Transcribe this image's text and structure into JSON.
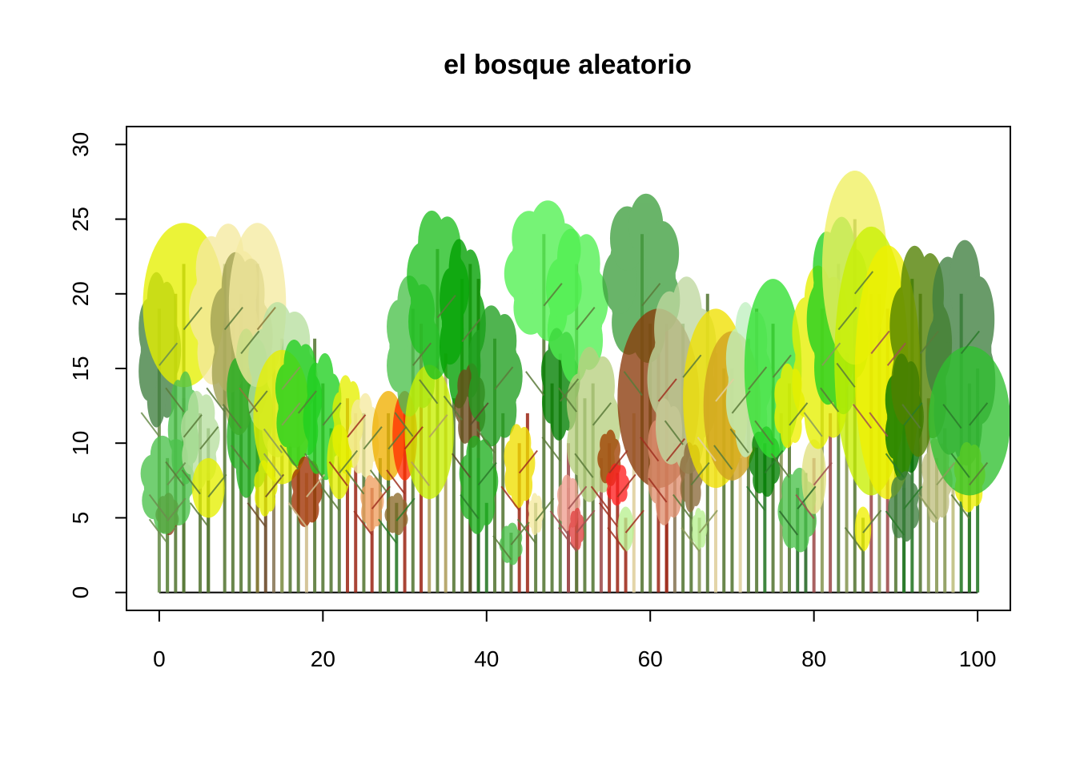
{
  "chart_data": {
    "type": "scatter",
    "title": "el bosque aleatorio",
    "xlabel": "",
    "ylabel": "",
    "xlim": [
      -4,
      104
    ],
    "ylim": [
      -1.2,
      31.2
    ],
    "x_ticks": [
      0,
      20,
      40,
      60,
      80,
      100
    ],
    "y_ticks": [
      0,
      5,
      10,
      15,
      20,
      25,
      30
    ],
    "grid": false,
    "legend": "none",
    "ground_line": [
      0,
      100
    ],
    "crown_shapes": [
      "cloud",
      "ellipse"
    ],
    "trees": [
      {
        "x": 0,
        "height": 19,
        "crown_width": 5.5,
        "crown_height": 11,
        "crown_shape": "cloud",
        "trunk_color": "#6b8e4e",
        "crown_color": "#3f7f3f"
      },
      {
        "x": 1,
        "height": 6,
        "crown_width": 3,
        "crown_height": 3,
        "crown_shape": "cloud",
        "trunk_color": "#6b8e4e",
        "crown_color": "#8b3a1a"
      },
      {
        "x": 1,
        "height": 9,
        "crown_width": 7,
        "crown_height": 7,
        "crown_shape": "cloud",
        "trunk_color": "#6b8e4e",
        "crown_color": "#4bc24b"
      },
      {
        "x": 3,
        "height": 22,
        "crown_width": 10,
        "crown_height": 11,
        "crown_shape": "ellipse",
        "trunk_color": "#5a7a3a",
        "crown_color": "#e6f000"
      },
      {
        "x": 3,
        "height": 13,
        "crown_width": 4,
        "crown_height": 8,
        "crown_shape": "cloud",
        "trunk_color": "#5a7a3a",
        "crown_color": "#4bc24b"
      },
      {
        "x": 5,
        "height": 12,
        "crown_width": 5,
        "crown_height": 7,
        "crown_shape": "cloud",
        "trunk_color": "#5a7a3a",
        "crown_color": "#b8e0a0"
      },
      {
        "x": 6,
        "height": 8,
        "crown_width": 4,
        "crown_height": 4,
        "crown_shape": "ellipse",
        "trunk_color": "#5a7a3a",
        "crown_color": "#e6f000"
      },
      {
        "x": 8,
        "height": 22,
        "crown_width": 9,
        "crown_height": 12,
        "crown_shape": "cloud",
        "trunk_color": "#5a7a3a",
        "crown_color": "#f5eaa0"
      },
      {
        "x": 10,
        "height": 20,
        "crown_width": 8,
        "crown_height": 13,
        "crown_shape": "cloud",
        "trunk_color": "#5a7a3a",
        "crown_color": "#a0a050"
      },
      {
        "x": 11,
        "height": 15,
        "crown_width": 6,
        "crown_height": 12,
        "crown_shape": "cloud",
        "trunk_color": "#5a7a3a",
        "crown_color": "#20b020"
      },
      {
        "x": 12,
        "height": 22,
        "crown_width": 7,
        "crown_height": 11,
        "crown_shape": "ellipse",
        "trunk_color": "#8b7a3a",
        "crown_color": "#f5eaa0"
      },
      {
        "x": 13,
        "height": 8,
        "crown_width": 3,
        "crown_height": 4,
        "crown_shape": "cloud",
        "trunk_color": "#6b4a2a",
        "crown_color": "#e6f000"
      },
      {
        "x": 15,
        "height": 17,
        "crown_width": 9,
        "crown_height": 11,
        "crown_shape": "cloud",
        "trunk_color": "#8b9a5a",
        "crown_color": "#b8e0a0"
      },
      {
        "x": 15,
        "height": 14,
        "crown_width": 7,
        "crown_height": 9,
        "crown_shape": "ellipse",
        "trunk_color": "#8b9a5a",
        "crown_color": "#e6f000"
      },
      {
        "x": 17,
        "height": 15,
        "crown_width": 6,
        "crown_height": 9,
        "crown_shape": "cloud",
        "trunk_color": "#5a7a3a",
        "crown_color": "#20d020"
      },
      {
        "x": 18,
        "height": 8,
        "crown_width": 4,
        "crown_height": 5,
        "crown_shape": "cloud",
        "trunk_color": "#d0c090",
        "crown_color": "#a03000"
      },
      {
        "x": 20,
        "height": 14,
        "crown_width": 5,
        "crown_height": 9,
        "crown_shape": "cloud",
        "trunk_color": "#5a7a3a",
        "crown_color": "#20d020"
      },
      {
        "x": 22,
        "height": 10,
        "crown_width": 3,
        "crown_height": 5,
        "crown_shape": "ellipse",
        "trunk_color": "#5a7a3a",
        "crown_color": "#e6f000"
      },
      {
        "x": 23,
        "height": 13,
        "crown_width": 4,
        "crown_height": 7,
        "crown_shape": "cloud",
        "trunk_color": "#a03020",
        "crown_color": "#e6f000"
      },
      {
        "x": 25,
        "height": 12,
        "crown_width": 4,
        "crown_height": 6,
        "crown_shape": "cloud",
        "trunk_color": "#5a7a3a",
        "crown_color": "#f5eaa0"
      },
      {
        "x": 26,
        "height": 7,
        "crown_width": 3,
        "crown_height": 4,
        "crown_shape": "cloud",
        "trunk_color": "#a03020",
        "crown_color": "#f0a060"
      },
      {
        "x": 28,
        "height": 12,
        "crown_width": 4,
        "crown_height": 6,
        "crown_shape": "ellipse",
        "trunk_color": "#5a7a3a",
        "crown_color": "#f0b000"
      },
      {
        "x": 29,
        "height": 6,
        "crown_width": 3,
        "crown_height": 3,
        "crown_shape": "cloud",
        "trunk_color": "#2a7a2a",
        "crown_color": "#8b6a2a"
      },
      {
        "x": 30,
        "height": 12,
        "crown_width": 3,
        "crown_height": 6,
        "crown_shape": "ellipse",
        "trunk_color": "#a03020",
        "crown_color": "#ff3000"
      },
      {
        "x": 31,
        "height": 19,
        "crown_width": 7,
        "crown_height": 10,
        "crown_shape": "cloud",
        "trunk_color": "#5a7a3a",
        "crown_color": "#4bc24b"
      },
      {
        "x": 33,
        "height": 13,
        "crown_width": 6,
        "crown_height": 9,
        "crown_shape": "ellipse",
        "trunk_color": "#b0a060",
        "crown_color": "#c8f000"
      },
      {
        "x": 34,
        "height": 23,
        "crown_width": 8,
        "crown_height": 12,
        "crown_shape": "cloud",
        "trunk_color": "#5a7a3a",
        "crown_color": "#20c020"
      },
      {
        "x": 37,
        "height": 21,
        "crown_width": 6,
        "crown_height": 12,
        "crown_shape": "cloud",
        "trunk_color": "#5a7a3a",
        "crown_color": "#00a000"
      },
      {
        "x": 38,
        "height": 14,
        "crown_width": 4,
        "crown_height": 6,
        "crown_shape": "cloud",
        "trunk_color": "#5a4a2a",
        "crown_color": "#6b4a1a"
      },
      {
        "x": 39,
        "height": 9,
        "crown_width": 5,
        "crown_height": 7,
        "crown_shape": "cloud",
        "trunk_color": "#2a7a2a",
        "crown_color": "#20b020"
      },
      {
        "x": 41,
        "height": 17,
        "crown_width": 7,
        "crown_height": 10,
        "crown_shape": "cloud",
        "trunk_color": "#5a7a3a",
        "crown_color": "#20a020"
      },
      {
        "x": 43,
        "height": 4,
        "crown_width": 3,
        "crown_height": 3,
        "crown_shape": "cloud",
        "trunk_color": "#5a7a3a",
        "crown_color": "#4bc24b"
      },
      {
        "x": 44,
        "height": 10,
        "crown_width": 4,
        "crown_height": 6,
        "crown_shape": "cloud",
        "trunk_color": "#a03020",
        "crown_color": "#f0e000"
      },
      {
        "x": 46,
        "height": 6,
        "crown_width": 2,
        "crown_height": 3,
        "crown_shape": "cloud",
        "trunk_color": "#5a7a3a",
        "crown_color": "#f5eaa0"
      },
      {
        "x": 47,
        "height": 24,
        "crown_width": 10,
        "crown_height": 10,
        "crown_shape": "cloud",
        "trunk_color": "#5a7a3a",
        "crown_color": "#50f050"
      },
      {
        "x": 49,
        "height": 16,
        "crown_width": 5,
        "crown_height": 8,
        "crown_shape": "cloud",
        "trunk_color": "#5a7a3a",
        "crown_color": "#008000"
      },
      {
        "x": 50,
        "height": 7,
        "crown_width": 3,
        "crown_height": 4,
        "crown_shape": "cloud",
        "trunk_color": "#a05050",
        "crown_color": "#f0a090"
      },
      {
        "x": 51,
        "height": 5,
        "crown_width": 2,
        "crown_height": 3,
        "crown_shape": "cloud",
        "trunk_color": "#a05050",
        "crown_color": "#e04040"
      },
      {
        "x": 51,
        "height": 22,
        "crown_width": 8,
        "crown_height": 11,
        "crown_shape": "cloud",
        "trunk_color": "#5a7a3a",
        "crown_color": "#50f050"
      },
      {
        "x": 53,
        "height": 14,
        "crown_width": 7,
        "crown_height": 11,
        "crown_shape": "cloud",
        "trunk_color": "#5a7a3a",
        "crown_color": "#b8d080"
      },
      {
        "x": 55,
        "height": 10,
        "crown_width": 3,
        "crown_height": 4,
        "crown_shape": "cloud",
        "trunk_color": "#a03020",
        "crown_color": "#a04000"
      },
      {
        "x": 56,
        "height": 8,
        "crown_width": 3,
        "crown_height": 3,
        "crown_shape": "cloud",
        "trunk_color": "#a03020",
        "crown_color": "#ff2020"
      },
      {
        "x": 57,
        "height": 5,
        "crown_width": 2,
        "crown_height": 3,
        "crown_shape": "ellipse",
        "trunk_color": "#a03020",
        "crown_color": "#b8f090"
      },
      {
        "x": 59,
        "height": 24,
        "crown_width": 10,
        "crown_height": 12,
        "crown_shape": "cloud",
        "trunk_color": "#5a7a3a",
        "crown_color": "#3fa03f"
      },
      {
        "x": 61,
        "height": 16,
        "crown_width": 10,
        "crown_height": 12,
        "crown_shape": "ellipse",
        "trunk_color": "#a03020",
        "crown_color": "#8b3a0a"
      },
      {
        "x": 62,
        "height": 11,
        "crown_width": 5,
        "crown_height": 9,
        "crown_shape": "cloud",
        "trunk_color": "#a03020",
        "crown_color": "#e09070"
      },
      {
        "x": 64,
        "height": 18,
        "crown_width": 9,
        "crown_height": 14,
        "crown_shape": "cloud",
        "trunk_color": "#5a7a3a",
        "crown_color": "#c0d8a0"
      },
      {
        "x": 65,
        "height": 9,
        "crown_width": 3,
        "crown_height": 5,
        "crown_shape": "cloud",
        "trunk_color": "#5a7a3a",
        "crown_color": "#8b6a3a"
      },
      {
        "x": 66,
        "height": 5,
        "crown_width": 2,
        "crown_height": 3,
        "crown_shape": "cloud",
        "trunk_color": "#8b9a5a",
        "crown_color": "#b8f090"
      },
      {
        "x": 68,
        "height": 16,
        "crown_width": 8,
        "crown_height": 12,
        "crown_shape": "ellipse",
        "trunk_color": "#e0d0a0",
        "crown_color": "#f0e000"
      },
      {
        "x": 70,
        "height": 15,
        "crown_width": 7,
        "crown_height": 10,
        "crown_shape": "ellipse",
        "trunk_color": "#5a7a3a",
        "crown_color": "#d0a020"
      },
      {
        "x": 72,
        "height": 17,
        "crown_width": 6,
        "crown_height": 11,
        "crown_shape": "cloud",
        "trunk_color": "#5a7a3a",
        "crown_color": "#c0f0c0"
      },
      {
        "x": 74,
        "height": 10,
        "crown_width": 4,
        "crown_height": 5,
        "crown_shape": "cloud",
        "trunk_color": "#2a7a2a",
        "crown_color": "#008000"
      },
      {
        "x": 75,
        "height": 18,
        "crown_width": 7,
        "crown_height": 12,
        "crown_shape": "ellipse",
        "trunk_color": "#5a7a3a",
        "crown_color": "#30e030"
      },
      {
        "x": 77,
        "height": 14,
        "crown_width": 4,
        "crown_height": 6,
        "crown_shape": "cloud",
        "trunk_color": "#5a7a3a",
        "crown_color": "#f0f000"
      },
      {
        "x": 78,
        "height": 7,
        "crown_width": 5,
        "crown_height": 6,
        "crown_shape": "cloud",
        "trunk_color": "#2a6a2a",
        "crown_color": "#4bc24b"
      },
      {
        "x": 80,
        "height": 9,
        "crown_width": 3,
        "crown_height": 5,
        "crown_shape": "ellipse",
        "trunk_color": "#a05050",
        "crown_color": "#e0e080"
      },
      {
        "x": 81,
        "height": 19,
        "crown_width": 8,
        "crown_height": 13,
        "crown_shape": "cloud",
        "trunk_color": "#8b9a5a",
        "crown_color": "#e6f000"
      },
      {
        "x": 83,
        "height": 22,
        "crown_width": 8,
        "crown_height": 14,
        "crown_shape": "cloud",
        "trunk_color": "#5a7a3a",
        "crown_color": "#20d020"
      },
      {
        "x": 85,
        "height": 25,
        "crown_width": 8,
        "crown_height": 13,
        "crown_shape": "ellipse",
        "trunk_color": "#5a7a3a",
        "crown_color": "#f0f060"
      },
      {
        "x": 86,
        "height": 5,
        "crown_width": 2,
        "crown_height": 3,
        "crown_shape": "ellipse",
        "trunk_color": "#5a7a3a",
        "crown_color": "#f0f000"
      },
      {
        "x": 87,
        "height": 20,
        "crown_width": 9,
        "crown_height": 18,
        "crown_shape": "ellipse",
        "trunk_color": "#a05050",
        "crown_color": "#c8f000"
      },
      {
        "x": 89,
        "height": 19,
        "crown_width": 8,
        "crown_height": 17,
        "crown_shape": "ellipse",
        "trunk_color": "#a05050",
        "crown_color": "#f0f000"
      },
      {
        "x": 91,
        "height": 14,
        "crown_width": 5,
        "crown_height": 9,
        "crown_shape": "cloud",
        "trunk_color": "#2a7a2a",
        "crown_color": "#007000"
      },
      {
        "x": 91,
        "height": 7,
        "crown_width": 4,
        "crown_height": 5,
        "crown_shape": "cloud",
        "trunk_color": "#2a7a2a",
        "crown_color": "#3f7f3f"
      },
      {
        "x": 93,
        "height": 20,
        "crown_width": 8,
        "crown_height": 15,
        "crown_shape": "cloud",
        "trunk_color": "#5a7a3a",
        "crown_color": "#508000"
      },
      {
        "x": 95,
        "height": 9,
        "crown_width": 4,
        "crown_height": 6,
        "crown_shape": "cloud",
        "trunk_color": "#8b9a5a",
        "crown_color": "#c0c080"
      },
      {
        "x": 98,
        "height": 20,
        "crown_width": 9,
        "crown_height": 16,
        "crown_shape": "cloud",
        "trunk_color": "#2a7a2a",
        "crown_color": "#3f7f3f"
      },
      {
        "x": 99,
        "height": 9,
        "crown_width": 4,
        "crown_height": 5,
        "crown_shape": "cloud",
        "trunk_color": "#5a7a3a",
        "crown_color": "#f0f000"
      },
      {
        "x": 99,
        "height": 14,
        "crown_width": 10,
        "crown_height": 10,
        "crown_shape": "ellipse",
        "trunk_color": "#2a7a2a",
        "crown_color": "#30c030"
      }
    ],
    "extra_trunks": [
      {
        "x": 2,
        "height": 20,
        "color": "#5a7a3a"
      },
      {
        "x": 6,
        "height": 11,
        "color": "#5a7a3a"
      },
      {
        "x": 9,
        "height": 19,
        "color": "#5a7a3a"
      },
      {
        "x": 12,
        "height": 17,
        "color": "#5a7a3a"
      },
      {
        "x": 14,
        "height": 16,
        "color": "#8b7a5a"
      },
      {
        "x": 16,
        "height": 10,
        "color": "#5a7a3a"
      },
      {
        "x": 19,
        "height": 17,
        "color": "#5a7a3a"
      },
      {
        "x": 21,
        "height": 11,
        "color": "#5a7a3a"
      },
      {
        "x": 24,
        "height": 12,
        "color": "#a03020"
      },
      {
        "x": 27,
        "height": 9,
        "color": "#5a7a3a"
      },
      {
        "x": 28,
        "height": 8,
        "color": "#2a7a2a"
      },
      {
        "x": 32,
        "height": 18,
        "color": "#a03020"
      },
      {
        "x": 35,
        "height": 16,
        "color": "#b0a060"
      },
      {
        "x": 36,
        "height": 13,
        "color": "#5a7a3a"
      },
      {
        "x": 38,
        "height": 22,
        "color": "#5a7a3a"
      },
      {
        "x": 39,
        "height": 21,
        "color": "#5a4a2a"
      },
      {
        "x": 40,
        "height": 6,
        "color": "#2a7a2a"
      },
      {
        "x": 42,
        "height": 12,
        "color": "#5a7a3a"
      },
      {
        "x": 45,
        "height": 12,
        "color": "#a03020"
      },
      {
        "x": 48,
        "height": 14,
        "color": "#5a7a3a"
      },
      {
        "x": 50,
        "height": 10,
        "color": "#a05050"
      },
      {
        "x": 52,
        "height": 13,
        "color": "#5a7a3a"
      },
      {
        "x": 54,
        "height": 9,
        "color": "#a05050"
      },
      {
        "x": 58,
        "height": 12,
        "color": "#e0d0a0"
      },
      {
        "x": 60,
        "height": 18,
        "color": "#5a7a3a"
      },
      {
        "x": 62,
        "height": 18,
        "color": "#a03020"
      },
      {
        "x": 63,
        "height": 10,
        "color": "#8b7a5a"
      },
      {
        "x": 67,
        "height": 20,
        "color": "#5a7a3a"
      },
      {
        "x": 69,
        "height": 15,
        "color": "#5a7a3a"
      },
      {
        "x": 71,
        "height": 9,
        "color": "#e0d0a0"
      },
      {
        "x": 73,
        "height": 19,
        "color": "#5a7a3a"
      },
      {
        "x": 76,
        "height": 12,
        "color": "#8b9a5a"
      },
      {
        "x": 79,
        "height": 8,
        "color": "#2a6a2a"
      },
      {
        "x": 82,
        "height": 12,
        "color": "#a05050"
      },
      {
        "x": 84,
        "height": 16,
        "color": "#8b9a5a"
      },
      {
        "x": 88,
        "height": 20,
        "color": "#8b9a5a"
      },
      {
        "x": 90,
        "height": 15,
        "color": "#5a7a3a"
      },
      {
        "x": 92,
        "height": 21,
        "color": "#2a7a2a"
      },
      {
        "x": 94,
        "height": 13,
        "color": "#8b9a5a"
      },
      {
        "x": 96,
        "height": 11,
        "color": "#8b9a5a"
      },
      {
        "x": 97,
        "height": 7,
        "color": "#c0c080"
      },
      {
        "x": 100,
        "height": 15,
        "color": "#2a7a2a"
      }
    ]
  }
}
